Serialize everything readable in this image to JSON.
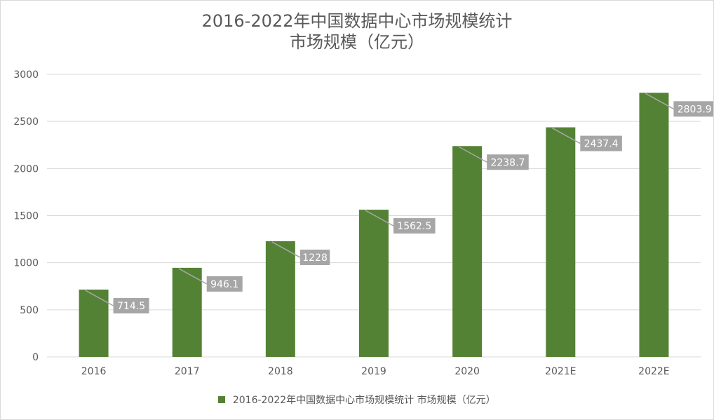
{
  "chart_data": {
    "type": "bar",
    "title": "2016-2022年中国数据中心市场规模统计",
    "subtitle": "市场规模（亿元）",
    "categories": [
      "2016",
      "2017",
      "2018",
      "2019",
      "2020",
      "2021E",
      "2022E"
    ],
    "series": [
      {
        "name": "2016-2022年中国数据中心市场规模统计 市场规模（亿元）",
        "values": [
          714.5,
          946.1,
          1228,
          1562.5,
          2238.7,
          2437.4,
          2803.9
        ],
        "data_labels": [
          "714.5",
          "946.1",
          "1228",
          "1562.5",
          "2238.7",
          "2437.4",
          "2803.9"
        ]
      }
    ],
    "ylim": [
      0,
      3000
    ],
    "yticks": [
      0,
      500,
      1000,
      1500,
      2000,
      2500,
      3000
    ],
    "grid": true,
    "legend_position": "bottom",
    "colors": {
      "bar": "#548235",
      "label_box": "#a6a6a6",
      "gridline": "#d9d9d9",
      "text": "#595959"
    }
  }
}
